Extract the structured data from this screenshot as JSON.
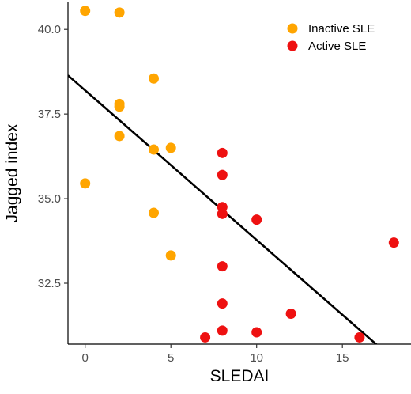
{
  "chart_data": {
    "type": "scatter",
    "xlabel": "SLEDAI",
    "ylabel": "Jagged index",
    "xlim": [
      -1,
      19
    ],
    "ylim": [
      30.7,
      40.8
    ],
    "x_ticks": [
      0,
      5,
      10,
      15
    ],
    "y_ticks": [
      32.5,
      35.0,
      37.5,
      40.0
    ],
    "x_tick_labels": [
      "0",
      "5",
      "10",
      "15"
    ],
    "y_tick_labels": [
      "32.5",
      "35.0",
      "37.5",
      "40.0"
    ],
    "grid": false,
    "legend_position": "top-right",
    "series": [
      {
        "name": "Inactive SLE",
        "color": "#FFA500",
        "points": [
          {
            "x": 0,
            "y": 40.55
          },
          {
            "x": 2,
            "y": 40.5
          },
          {
            "x": 4,
            "y": 38.55
          },
          {
            "x": 2,
            "y": 37.8
          },
          {
            "x": 2,
            "y": 37.72
          },
          {
            "x": 2,
            "y": 36.85
          },
          {
            "x": 4,
            "y": 36.45
          },
          {
            "x": 5,
            "y": 36.5
          },
          {
            "x": 0,
            "y": 35.45
          },
          {
            "x": 4,
            "y": 34.58
          },
          {
            "x": 5,
            "y": 33.32
          }
        ]
      },
      {
        "name": "Active SLE",
        "color": "#EE1111",
        "points": [
          {
            "x": 8,
            "y": 36.35
          },
          {
            "x": 8,
            "y": 35.7
          },
          {
            "x": 8,
            "y": 34.75
          },
          {
            "x": 8,
            "y": 34.55
          },
          {
            "x": 10,
            "y": 34.38
          },
          {
            "x": 18,
            "y": 33.7
          },
          {
            "x": 8,
            "y": 33.0
          },
          {
            "x": 8,
            "y": 31.9
          },
          {
            "x": 12,
            "y": 31.6
          },
          {
            "x": 8,
            "y": 31.1
          },
          {
            "x": 10,
            "y": 31.05
          },
          {
            "x": 7,
            "y": 30.9
          },
          {
            "x": 16,
            "y": 30.9
          }
        ]
      }
    ],
    "regression_line": {
      "intercept": 38.2,
      "slope": -0.4421,
      "color": "#000000"
    }
  }
}
